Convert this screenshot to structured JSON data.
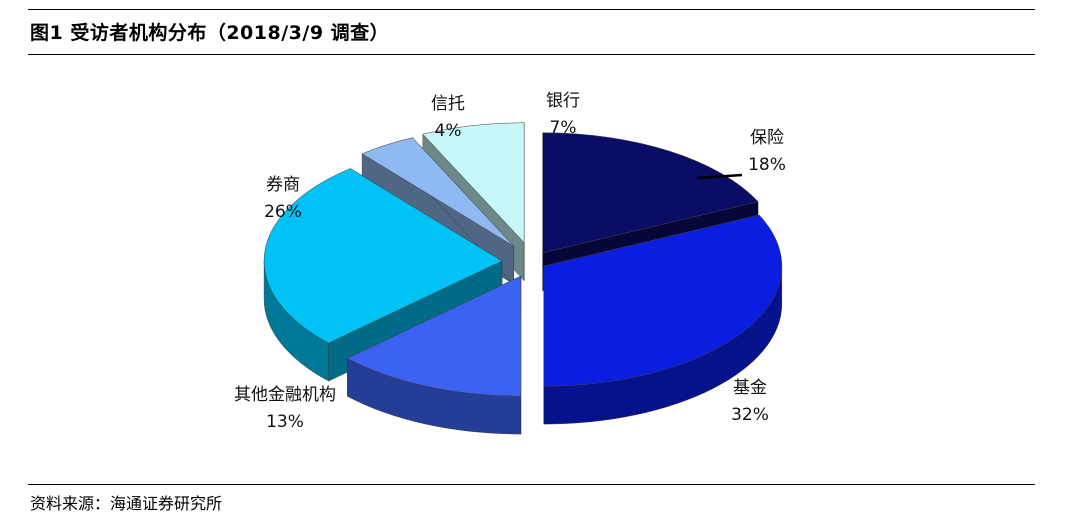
{
  "header": {
    "title": "图1  受访者机构分布（2018/3/9 调查）"
  },
  "footer": {
    "source": "资料来源：海通证券研究所"
  },
  "chart_data": {
    "type": "pie",
    "style": "3d-exploded",
    "legend": "none",
    "slices": [
      {
        "label": "保险",
        "value": 18,
        "value_label": "18%",
        "color": "#0b0c66"
      },
      {
        "label": "基金",
        "value": 32,
        "value_label": "32%",
        "color": "#0a1de0"
      },
      {
        "label": "其他金融机构",
        "value": 13,
        "value_label": "13%",
        "color": "#3a63f3"
      },
      {
        "label": "券商",
        "value": 26,
        "value_label": "26%",
        "color": "#00c2f5"
      },
      {
        "label": "信托",
        "value": 4,
        "value_label": "4%",
        "color": "#8fb9f2"
      },
      {
        "label": "银行",
        "value": 7,
        "value_label": "7%",
        "color": "#c7f7f8"
      }
    ]
  }
}
